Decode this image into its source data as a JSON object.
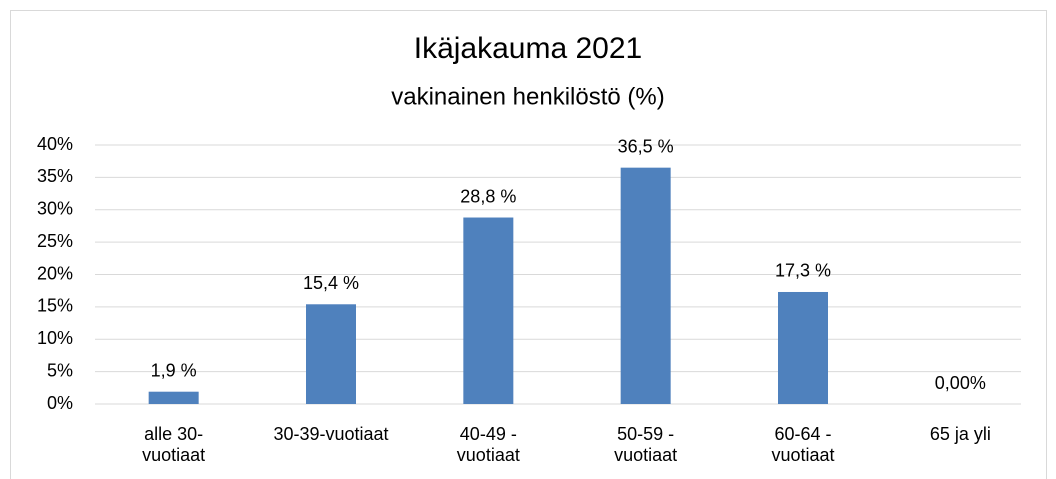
{
  "chart_data": {
    "type": "bar",
    "title": "Ikäjakauma 2021",
    "subtitle": "vakinainen henkilöstö (%)",
    "categories": [
      "alle 30-vuotiaat",
      "30-39-vuotiaat",
      "40-49 - vuotiaat",
      "50-59 - vuotiaat",
      "60-64 - vuotiaat",
      "65 ja yli"
    ],
    "values": [
      1.9,
      15.4,
      28.8,
      36.5,
      17.3,
      0
    ],
    "value_labels": [
      "1,9 %",
      "15,4 %",
      "28,8 %",
      "36,5 %",
      "17,3 %",
      "0,00%"
    ],
    "color": "#4f81bd",
    "ylim": [
      0,
      40
    ],
    "yticks": [
      {
        "value": 0,
        "label": "0%"
      },
      {
        "value": 5,
        "label": "5%"
      },
      {
        "value": 10,
        "label": "10%"
      },
      {
        "value": 15,
        "label": "15%"
      },
      {
        "value": 20,
        "label": "20%"
      },
      {
        "value": 25,
        "label": "25%"
      },
      {
        "value": 30,
        "label": "30%"
      },
      {
        "value": 35,
        "label": "35%"
      },
      {
        "value": 40,
        "label": "40%"
      }
    ],
    "grid": true
  }
}
